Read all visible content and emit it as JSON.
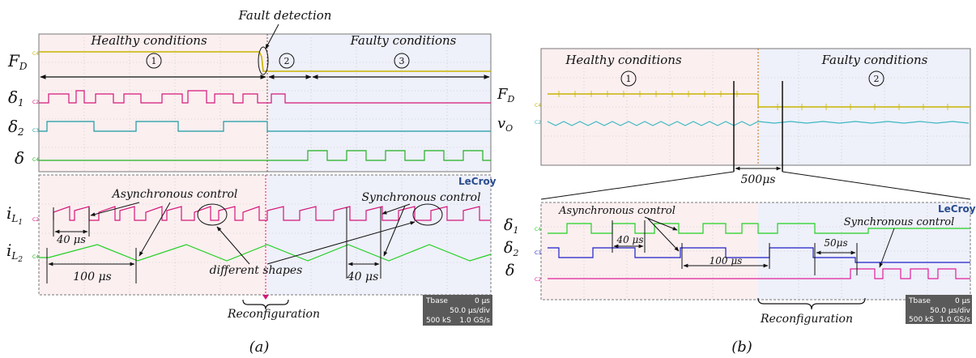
{
  "panel_a": {
    "caption": "(a)",
    "fault_detection": "Fault detection",
    "healthy": "Healthy conditions",
    "faulty": "Faulty conditions",
    "intervals": [
      "1",
      "2",
      "3"
    ],
    "signals": [
      "F",
      "D",
      "δ",
      "1",
      "δ",
      "2",
      "δ",
      "i",
      "L",
      "1",
      "i",
      "L",
      "2"
    ],
    "right_labels": [
      "F",
      "D",
      "v",
      "O"
    ],
    "async": "Asynchronous control",
    "sync": "Synchronous control",
    "diff_shapes": "different shapes",
    "t40a": "40 μs",
    "t100": "100 μs",
    "t40b": "40 μs",
    "reconfig": "Reconfiguration",
    "brand": "LeCroy",
    "tbase": "Tbase",
    "tbase_val": "0 μs",
    "div": "50.0 μs/div",
    "samples": "500 kS",
    "rate": "1.0 GS/s",
    "ch_tags": [
      "C4",
      "C2",
      "C3",
      "C4",
      "C2",
      "C4"
    ]
  },
  "panel_b": {
    "caption": "(b)",
    "healthy": "Healthy conditions",
    "faulty": "Faulty conditions",
    "intervals": [
      "1",
      "2"
    ],
    "zoom": "500μs",
    "async": "Asynchronous control",
    "sync": "Synchronous control",
    "signals": [
      "δ",
      "1",
      "δ",
      "2",
      "δ"
    ],
    "t40": "40 μs",
    "t100": "100 μs",
    "t50": "50μs",
    "reconfig": "Reconfiguration",
    "brand": "LeCroy",
    "tbase": "Tbase",
    "tbase_val": "0 μs",
    "div": "50.0 μs/div",
    "samples": "500 kS",
    "rate": "1.0 GS/s",
    "ch_tags": [
      "C4",
      "C2",
      "C4",
      "C3",
      "C2"
    ]
  },
  "colors": {
    "fd": "#c8b400",
    "delta1": "#d4177a",
    "delta2": "#1a9aa0",
    "delta": "#22b022",
    "blue": "#1f1fc8",
    "cyan": "#3cb8c0",
    "healthy_bg": "#fbeff0",
    "faulty_bg": "#eef0fa"
  }
}
